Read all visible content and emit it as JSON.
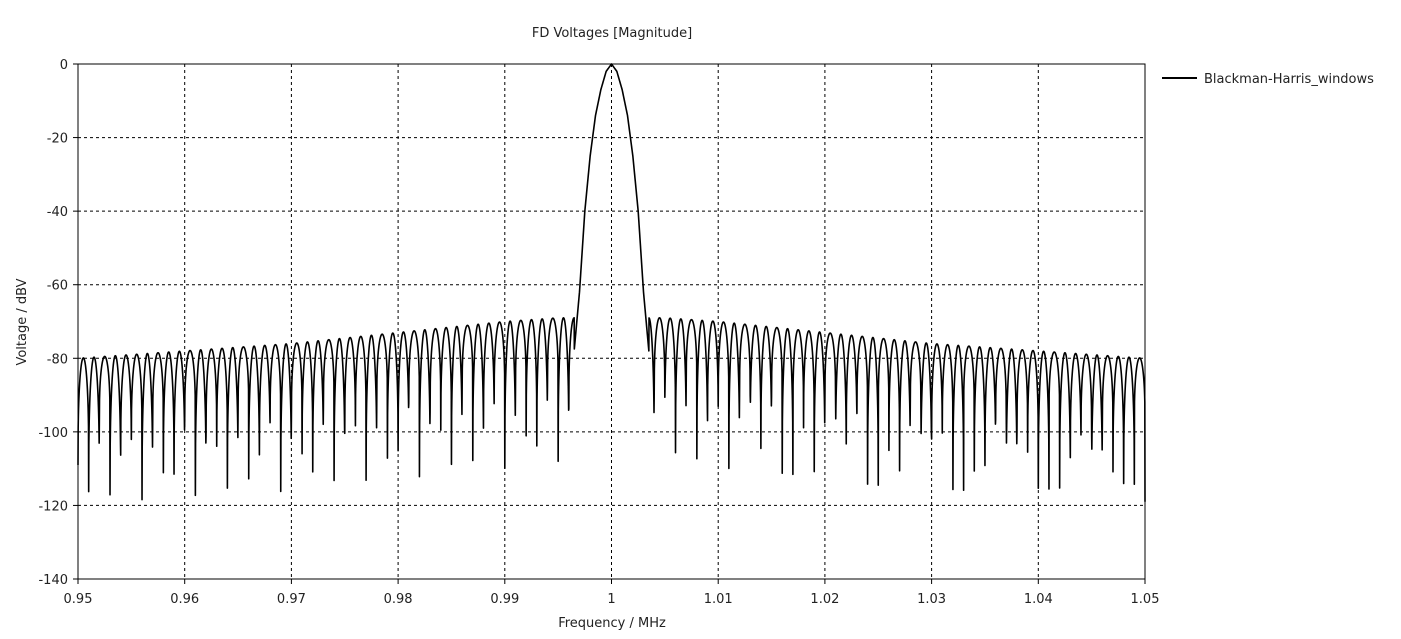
{
  "chart_data": {
    "type": "line",
    "title": "FD Voltages [Magnitude]",
    "xlabel": "Frequency / MHz",
    "ylabel": "Voltage / dBV",
    "xlim": [
      0.95,
      1.05
    ],
    "ylim": [
      -140,
      0
    ],
    "x_ticks": [
      "0.95",
      "0.96",
      "0.97",
      "0.98",
      "0.99",
      "1",
      "1.01",
      "1.02",
      "1.03",
      "1.04",
      "1.05"
    ],
    "y_ticks": [
      "0",
      "-20",
      "-40",
      "-60",
      "-80",
      "-100",
      "-120",
      "-140"
    ],
    "grid": true,
    "legend": {
      "position": "top-right"
    },
    "series": [
      {
        "name": "Blackman-Harris_windows",
        "color": "#000000",
        "description_points": {
          "main_lobe": [
            [
              0.9965,
              -78
            ],
            [
              0.997,
              -62
            ],
            [
              0.9975,
              -40
            ],
            [
              0.998,
              -25
            ],
            [
              0.9985,
              -14
            ],
            [
              0.999,
              -7
            ],
            [
              0.9995,
              -2
            ],
            [
              1.0,
              0
            ],
            [
              1.0005,
              -2
            ],
            [
              1.001,
              -7
            ],
            [
              1.0015,
              -14
            ],
            [
              1.002,
              -25
            ],
            [
              1.0025,
              -40
            ],
            [
              1.003,
              -62
            ],
            [
              1.0035,
              -78
            ]
          ],
          "sidelobe_envelope": [
            [
              0.95,
              -80
            ],
            [
              0.96,
              -78
            ],
            [
              0.97,
              -76
            ],
            [
              0.98,
              -73
            ],
            [
              0.99,
              -70
            ],
            [
              0.995,
              -69
            ],
            [
              1.005,
              -69
            ],
            [
              1.01,
              -70
            ],
            [
              1.02,
              -73
            ],
            [
              1.03,
              -76
            ],
            [
              1.04,
              -78
            ],
            [
              1.05,
              -80
            ]
          ],
          "sidelobe_spacing_mhz": 0.001
        }
      }
    ]
  }
}
